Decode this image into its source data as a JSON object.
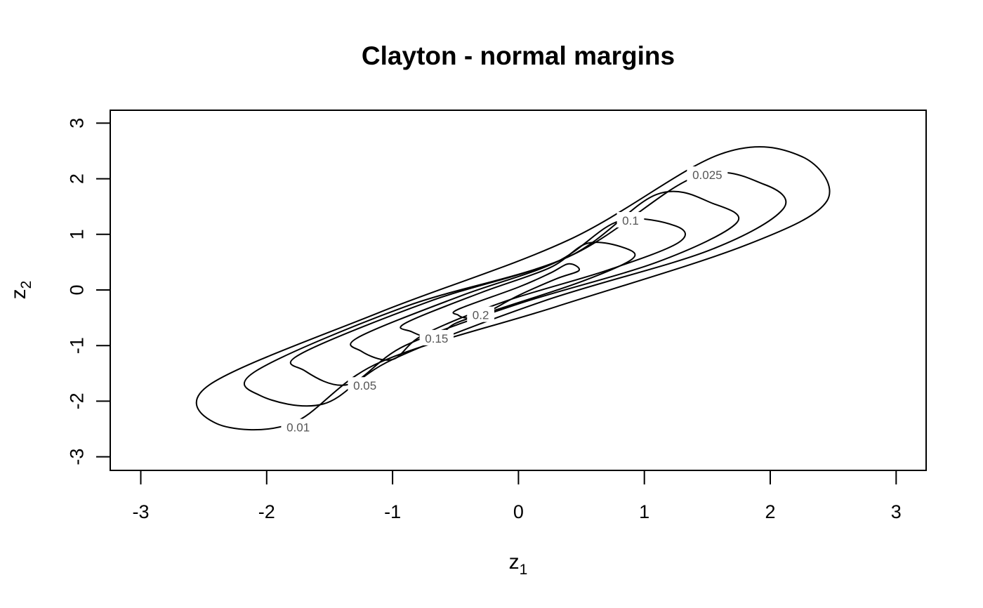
{
  "chart_data": {
    "type": "contour",
    "title": "Clayton - normal margins",
    "xlabel": {
      "base": "z",
      "sub": "1"
    },
    "ylabel": {
      "base": "z",
      "sub": "2"
    },
    "xlim": [
      -3.25,
      3.25
    ],
    "ylim": [
      -3.25,
      3.25
    ],
    "x_ticks": [
      -3,
      -2,
      -1,
      0,
      1,
      2,
      3
    ],
    "y_ticks": [
      -3,
      -2,
      -1,
      0,
      1,
      2,
      3
    ],
    "x_tick_labels": [
      "-3",
      "-2",
      "-1",
      "0",
      "1",
      "2",
      "3"
    ],
    "y_tick_labels": [
      "-3",
      "-2",
      "-1",
      "0",
      "1",
      "2",
      "3"
    ],
    "grid": false,
    "levels": [
      {
        "label": "0.01",
        "label_at": [
          -1.75,
          -2.47
        ],
        "curve": [
          [
            -2.45,
            -1.7
          ],
          [
            -1.1,
            -0.4
          ],
          [
            0.4,
            0.9
          ],
          [
            1.6,
            2.44
          ],
          [
            2.25,
            2.4
          ],
          [
            2.45,
            1.6
          ],
          [
            1.8,
            0.8
          ],
          [
            0.3,
            -0.3
          ],
          [
            -1.1,
            -1.3
          ],
          [
            -1.8,
            -2.4
          ],
          [
            -2.4,
            -2.4
          ]
        ]
      },
      {
        "label": "0.025",
        "label_at": [
          1.5,
          2.07
        ],
        "curve": [
          [
            -2.08,
            -1.45
          ],
          [
            -0.9,
            -0.3
          ],
          [
            0.4,
            0.6
          ],
          [
            1.4,
            2.03
          ],
          [
            1.95,
            1.9
          ],
          [
            2.1,
            1.45
          ],
          [
            1.5,
            0.7
          ],
          [
            0.2,
            -0.2
          ],
          [
            -1.0,
            -1.25
          ],
          [
            -1.55,
            -2.05
          ],
          [
            -2.05,
            -1.9
          ]
        ]
      },
      {
        "label": "0.05",
        "label_at": [
          -1.22,
          -1.72
        ],
        "curve": [
          [
            -1.73,
            -1.15
          ],
          [
            -0.7,
            -0.2
          ],
          [
            0.4,
            0.6
          ],
          [
            1.1,
            1.72
          ],
          [
            1.55,
            1.55
          ],
          [
            1.73,
            1.2
          ],
          [
            1.1,
            0.5
          ],
          [
            0.0,
            -0.25
          ],
          [
            -0.9,
            -1.0
          ],
          [
            -1.35,
            -1.7
          ],
          [
            -1.7,
            -1.45
          ]
        ]
      },
      {
        "label": "0.1",
        "label_at": [
          0.89,
          1.25
        ],
        "curve": [
          [
            -1.27,
            -0.85
          ],
          [
            -0.45,
            -0.1
          ],
          [
            0.3,
            0.5
          ],
          [
            0.8,
            1.24
          ],
          [
            1.25,
            1.15
          ],
          [
            1.27,
            0.85
          ],
          [
            0.7,
            0.35
          ],
          [
            -0.1,
            -0.2
          ],
          [
            -0.75,
            -0.8
          ],
          [
            -1.0,
            -1.25
          ],
          [
            -1.25,
            -1.1
          ]
        ]
      },
      {
        "label": "0.15",
        "label_at": [
          -0.65,
          -0.87
        ],
        "curve": [
          [
            -0.9,
            -0.6
          ],
          [
            -0.3,
            -0.05
          ],
          [
            0.25,
            0.4
          ],
          [
            0.55,
            0.84
          ],
          [
            0.85,
            0.75
          ],
          [
            0.9,
            0.55
          ],
          [
            0.5,
            0.15
          ],
          [
            -0.1,
            -0.3
          ],
          [
            -0.5,
            -0.6
          ],
          [
            -0.65,
            -0.87
          ],
          [
            -0.85,
            -0.75
          ]
        ]
      },
      {
        "label": "0.2",
        "label_at": [
          -0.3,
          -0.45
        ],
        "curve": [
          [
            -0.48,
            -0.35
          ],
          [
            0.0,
            0.05
          ],
          [
            0.25,
            0.3
          ],
          [
            0.4,
            0.47
          ],
          [
            0.48,
            0.35
          ],
          [
            0.3,
            0.2
          ],
          [
            0.0,
            -0.1
          ],
          [
            -0.25,
            -0.4
          ],
          [
            -0.4,
            -0.5
          ],
          [
            -0.48,
            -0.45
          ]
        ]
      }
    ]
  }
}
